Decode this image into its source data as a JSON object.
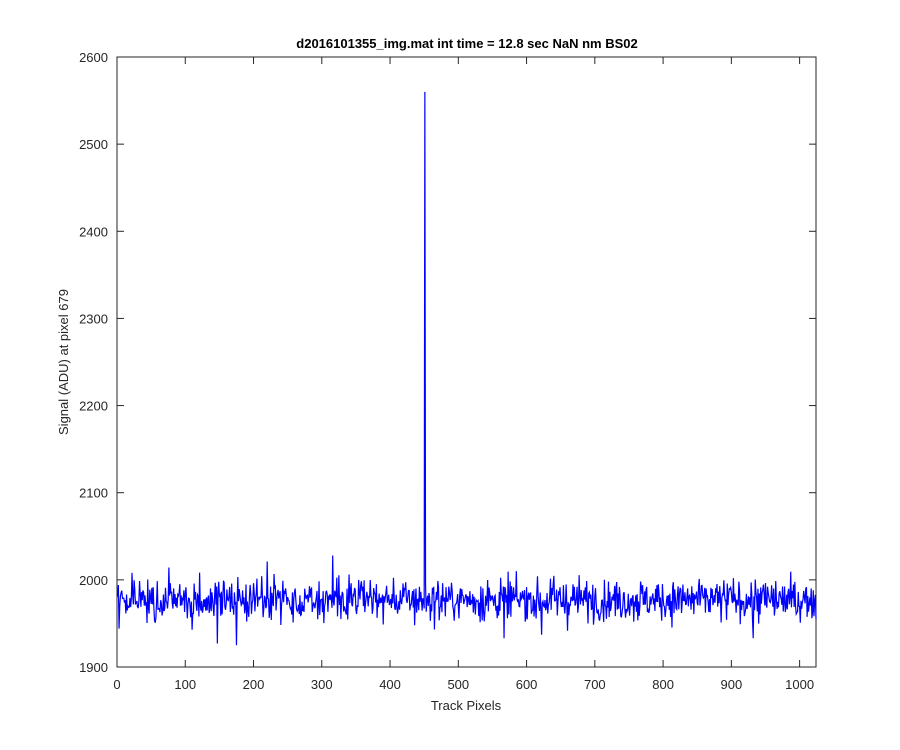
{
  "chart_data": {
    "type": "line",
    "title": "d2016101355_img.mat int time = 12.8 sec  NaN nm BS02",
    "xlabel": "Track Pixels",
    "ylabel": "Signal (ADU) at pixel 679",
    "xlim": [
      0,
      1024
    ],
    "ylim": [
      1900,
      2600
    ],
    "xticks": [
      0,
      100,
      200,
      300,
      400,
      500,
      600,
      700,
      800,
      900,
      1000
    ],
    "yticks": [
      1900,
      2000,
      2100,
      2200,
      2300,
      2400,
      2500,
      2600
    ],
    "grid": false,
    "line_color": "#0000ff",
    "series": [
      {
        "x_start": 1,
        "x_step": 1,
        "baseline_mean": 1977,
        "noise_sd": 12,
        "peak": {
          "x": 451,
          "y": 2560
        },
        "highlights": [
          {
            "x": 3,
            "y": 1944
          },
          {
            "x": 22,
            "y": 2008
          },
          {
            "x": 147,
            "y": 1927
          },
          {
            "x": 175,
            "y": 1925
          },
          {
            "x": 220,
            "y": 2021
          },
          {
            "x": 316,
            "y": 2028
          },
          {
            "x": 567,
            "y": 1933
          },
          {
            "x": 622,
            "y": 1937
          },
          {
            "x": 932,
            "y": 1933
          },
          {
            "x": 1024,
            "y": 1955
          }
        ]
      }
    ]
  }
}
